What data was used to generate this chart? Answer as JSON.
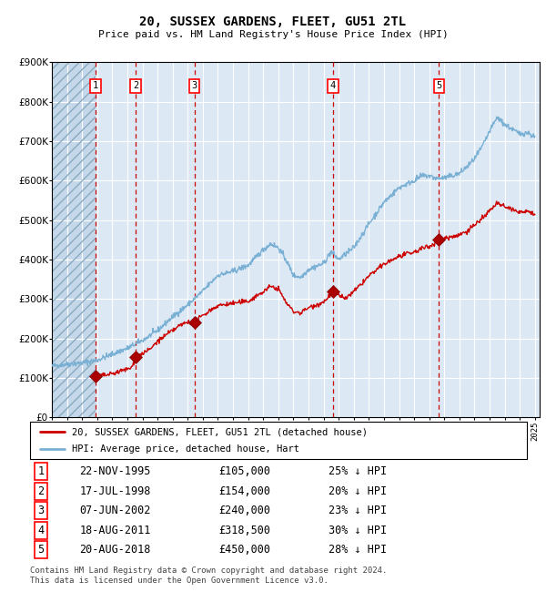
{
  "title": "20, SUSSEX GARDENS, FLEET, GU51 2TL",
  "subtitle": "Price paid vs. HM Land Registry's House Price Index (HPI)",
  "bg_color": "#dce9f5",
  "hpi_color": "#7ab0d4",
  "price_color": "#cc0000",
  "vline_color": "#cc0000",
  "marker_color": "#aa0000",
  "sale_dates_x": [
    1995.9,
    1998.55,
    2002.44,
    2011.63,
    2018.64
  ],
  "sale_prices": [
    105000,
    154000,
    240000,
    318500,
    450000
  ],
  "sale_labels": [
    "1",
    "2",
    "3",
    "4",
    "5"
  ],
  "footer_text": "Contains HM Land Registry data © Crown copyright and database right 2024.\nThis data is licensed under the Open Government Licence v3.0.",
  "legend_entries": [
    "20, SUSSEX GARDENS, FLEET, GU51 2TL (detached house)",
    "HPI: Average price, detached house, Hart"
  ],
  "table_rows": [
    [
      "1",
      "22-NOV-1995",
      "£105,000",
      "25% ↓ HPI"
    ],
    [
      "2",
      "17-JUL-1998",
      "£154,000",
      "20% ↓ HPI"
    ],
    [
      "3",
      "07-JUN-2002",
      "£240,000",
      "23% ↓ HPI"
    ],
    [
      "4",
      "18-AUG-2011",
      "£318,500",
      "30% ↓ HPI"
    ],
    [
      "5",
      "20-AUG-2018",
      "£450,000",
      "28% ↓ HPI"
    ]
  ]
}
